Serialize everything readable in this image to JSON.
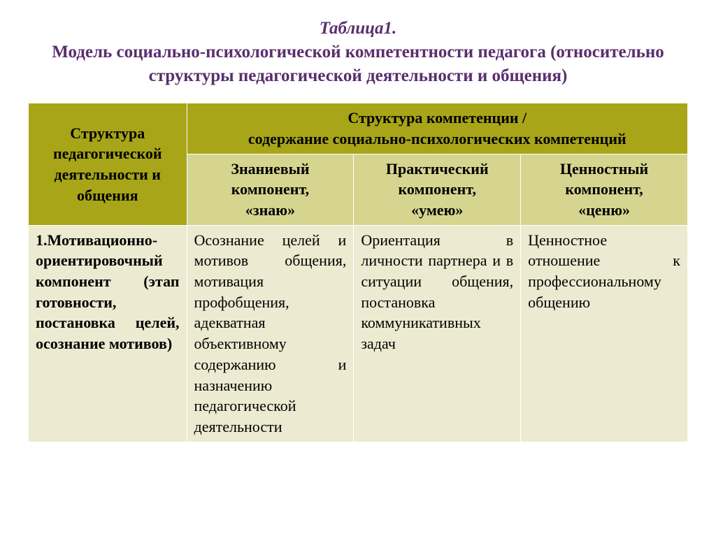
{
  "title": {
    "line1": "Таблица1.",
    "line2": "Модель социально-психологической компетентности педагога (относительно структуры педагогической деятельности и общения)"
  },
  "table": {
    "header": {
      "left": "Структура педагогической деятельности и общения",
      "right_line1": "Структура компетенции /",
      "right_line2": "содержание социально-психологических компетенций",
      "sub1_top": "Знаниевый компонент,",
      "sub1_bot": "«знаю»",
      "sub2_top": "Практический компонент,",
      "sub2_bot": "«умею»",
      "sub3_top": "Ценностный компонент,",
      "sub3_bot": "«ценю»"
    },
    "row1": {
      "c1": "1.Мотивационно-ориентировочный компонент (этап готовности, постановка целей, осознание мотивов)",
      "c2": "Осознание целей и мотивов общения, мотивация профобщения, адекватная объективному содержанию и назначению педагогической деятельности",
      "c3": "Ориентация в личности партнера и в ситуации общения, постановка коммуникативных задач",
      "c4": "Ценностное отношение к профессиональному общению"
    }
  },
  "colors": {
    "title": "#5a2e6e",
    "header_dark_bg": "#a8a518",
    "header_light_bg": "#d6d58f",
    "body_bg": "#ecebd1",
    "border": "#ffffff"
  }
}
